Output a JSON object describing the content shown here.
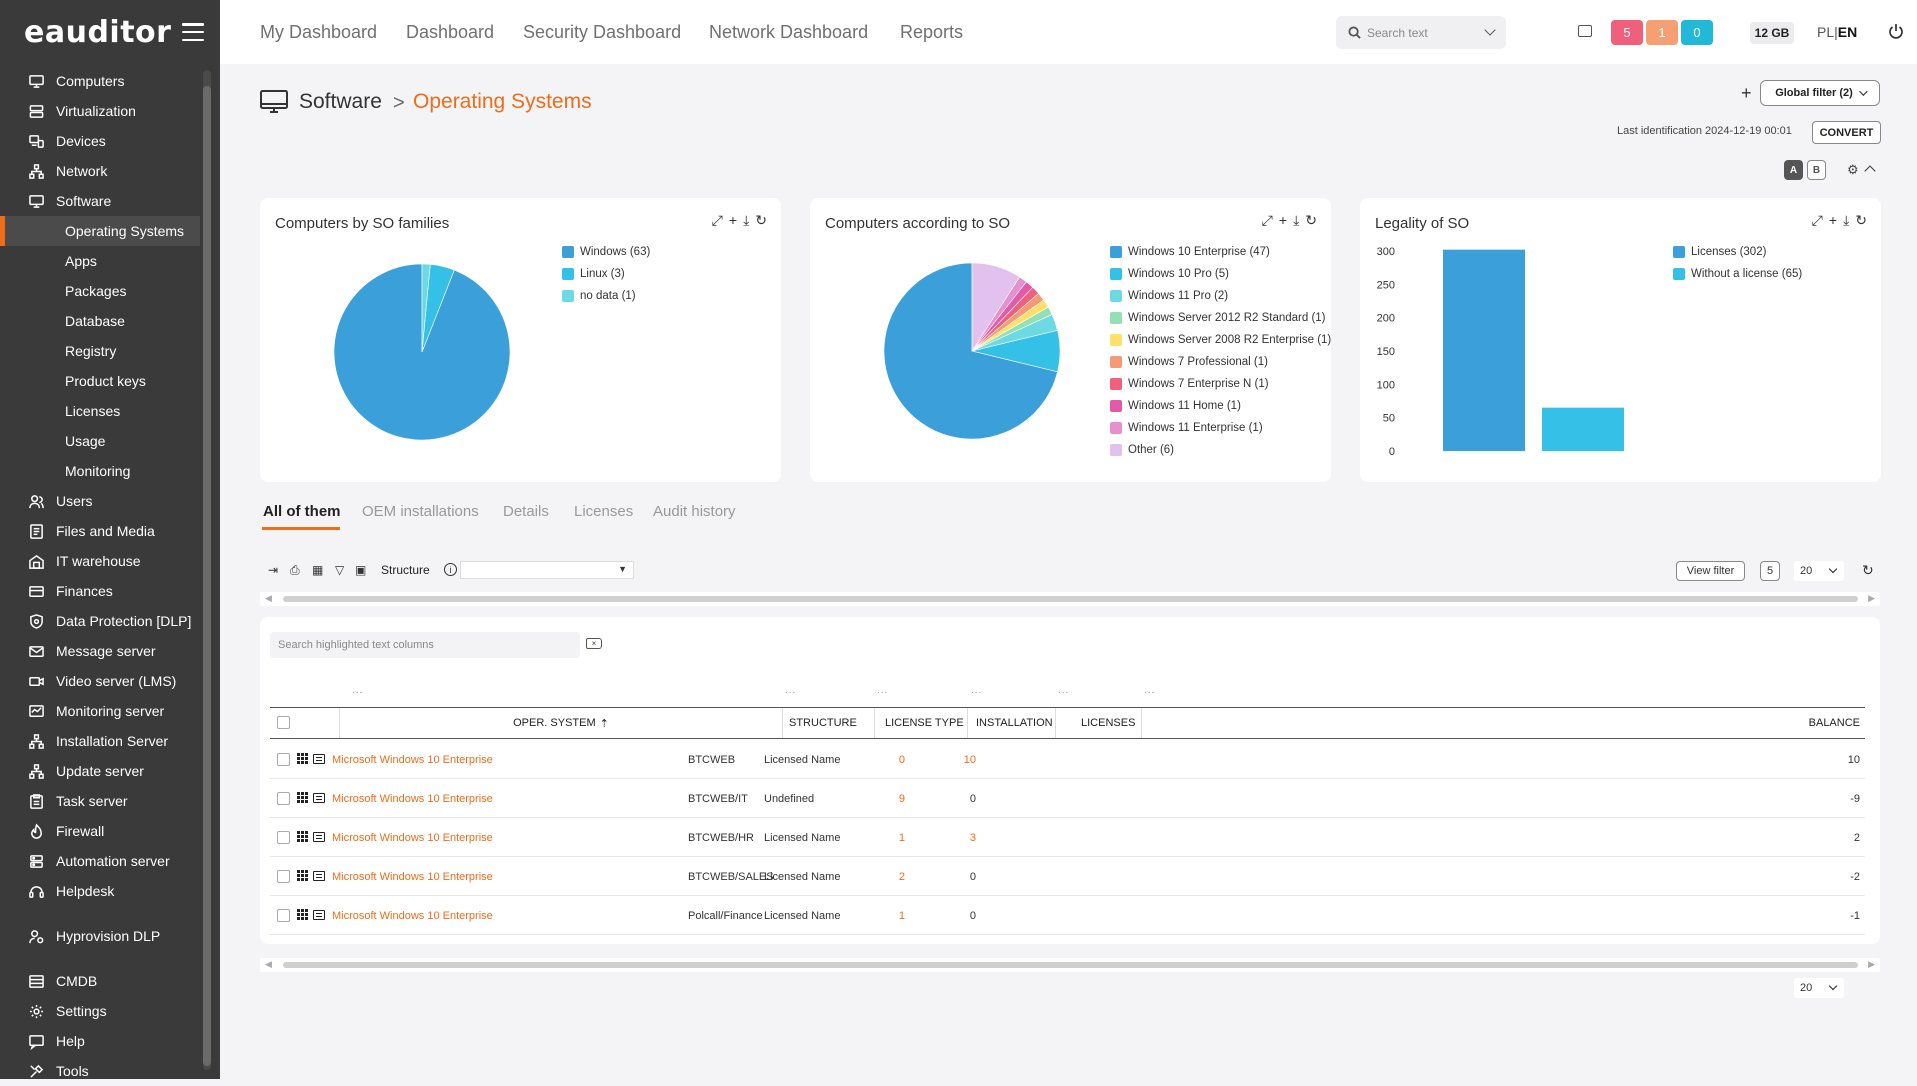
{
  "brand": "eauditor",
  "sidebar": {
    "items": [
      {
        "label": "Computers",
        "icon": "monitor-icon"
      },
      {
        "label": "Virtualization",
        "icon": "server-icon"
      },
      {
        "label": "Devices",
        "icon": "devices-icon"
      },
      {
        "label": "Network",
        "icon": "network-icon"
      },
      {
        "label": "Software",
        "icon": "software-icon"
      },
      {
        "label": "Operating Systems",
        "sub": true,
        "active": true
      },
      {
        "label": "Apps",
        "sub": true
      },
      {
        "label": "Packages",
        "sub": true
      },
      {
        "label": "Database",
        "sub": true
      },
      {
        "label": "Registry",
        "sub": true
      },
      {
        "label": "Product keys",
        "sub": true
      },
      {
        "label": "Licenses",
        "sub": true
      },
      {
        "label": "Usage",
        "sub": true
      },
      {
        "label": "Monitoring",
        "sub": true
      },
      {
        "label": "Users",
        "icon": "users-icon"
      },
      {
        "label": "Files and Media",
        "icon": "files-icon"
      },
      {
        "label": "IT warehouse",
        "icon": "warehouse-icon"
      },
      {
        "label": "Finances",
        "icon": "finances-icon"
      },
      {
        "label": "Data Protection [DLP]",
        "icon": "shield-icon"
      },
      {
        "label": "Message server",
        "icon": "mail-icon"
      },
      {
        "label": "Video server (LMS)",
        "icon": "video-icon"
      },
      {
        "label": "Monitoring server",
        "icon": "monitoring-icon"
      },
      {
        "label": "Installation Server",
        "icon": "installation-icon"
      },
      {
        "label": "Update server",
        "icon": "update-icon"
      },
      {
        "label": "Task server",
        "icon": "task-icon"
      },
      {
        "label": "Firewall",
        "icon": "firewall-icon"
      },
      {
        "label": "Automation server",
        "icon": "automation-icon"
      },
      {
        "label": "Helpdesk",
        "icon": "helpdesk-icon"
      },
      {
        "label": "Hyprovision DLP",
        "icon": "hyprovision-icon",
        "gap": true
      },
      {
        "label": "CMDB",
        "icon": "cmdb-icon",
        "gap": true
      },
      {
        "label": "Settings",
        "icon": "gear-icon"
      },
      {
        "label": "Help",
        "icon": "help-icon"
      },
      {
        "label": "Tools",
        "icon": "tools-icon"
      }
    ]
  },
  "topnav": [
    {
      "label": "My Dashboard"
    },
    {
      "label": "Dashboard"
    },
    {
      "label": "Security Dashboard"
    },
    {
      "label": "Network Dashboard"
    },
    {
      "label": "Reports"
    }
  ],
  "search": {
    "placeholder": "Search text"
  },
  "alerts": [
    {
      "value": "5",
      "color": "#f0607c"
    },
    {
      "value": "1",
      "color": "#f59f74"
    },
    {
      "value": "0",
      "color": "#22b8d8"
    }
  ],
  "memory": "12 GB",
  "lang": {
    "pl": "PL",
    "sep": "|",
    "en": "EN"
  },
  "breadcrumb": {
    "parent": "Software",
    "sep": ">",
    "current": "Operating Systems"
  },
  "actions": {
    "plus": "+",
    "global_filter": "Global filter (2)",
    "last_identification": "Last identification 2024-12-19 00:01",
    "convert": "CONVERT",
    "view_a": "A",
    "view_b": "B"
  },
  "chart_data": [
    {
      "type": "pie",
      "title": "Computers by SO families",
      "labels": [
        "Windows (63)",
        "Linux (3)",
        "no data (1)"
      ],
      "values": [
        63,
        3,
        1
      ],
      "colors": [
        "#3b9fd9",
        "#35c0e8",
        "#6cd9e3"
      ]
    },
    {
      "type": "pie",
      "title": "Computers according to SO",
      "labels": [
        "Windows 10 Enterprise (47)",
        "Windows 10 Pro (5)",
        "Windows 11 Pro (2)",
        "Windows Server 2012 R2 Standard (1)",
        "Windows Server 2008 R2 Enterprise (1)",
        "Windows 7 Professional (1)",
        "Windows 7 Enterprise N (1)",
        "Windows 11 Home (1)",
        "Windows 11 Enterprise (1)",
        "Other (6)"
      ],
      "values": [
        47,
        5,
        2,
        1,
        1,
        1,
        1,
        1,
        1,
        6
      ],
      "colors": [
        "#3b9fd9",
        "#35c0e8",
        "#6cd9e3",
        "#93e0b5",
        "#ffe06a",
        "#f59a74",
        "#f0607c",
        "#e25aa8",
        "#e690cf",
        "#e3c1ef"
      ]
    },
    {
      "type": "bar",
      "title": "Legality of SO",
      "categories": [
        "Licenses (302)",
        "Without a license (65)"
      ],
      "values": [
        302,
        65
      ],
      "colors": [
        "#3b9fd9",
        "#35c0e8"
      ],
      "ylim": [
        0,
        300
      ],
      "yticks": [
        "300",
        "250",
        "200",
        "150",
        "100",
        "50",
        "0"
      ]
    }
  ],
  "tabs": [
    {
      "label": "All of them",
      "active": true
    },
    {
      "label": "OEM installations"
    },
    {
      "label": "Details"
    },
    {
      "label": "Licenses"
    },
    {
      "label": "Audit history"
    }
  ],
  "toolbar": {
    "structure_label": "Structure",
    "view_filter": "View filter",
    "count": "5",
    "page_size": "20"
  },
  "table": {
    "search_placeholder": "Search highlighted text columns",
    "dots": "...",
    "columns": [
      "OPER. SYSTEM",
      "STRUCTURE",
      "LICENSE TYPE",
      "INSTALLATION",
      "LICENSES",
      "BALANCE"
    ],
    "rows": [
      {
        "os": "Microsoft Windows 10 Enterprise",
        "structure": "BTCWEB",
        "license_type": "Licensed Name",
        "installation": "0",
        "licenses": "10",
        "balance": "10",
        "lic_orange": true
      },
      {
        "os": "Microsoft Windows 10 Enterprise",
        "structure": "BTCWEB/IT",
        "license_type": "Undefined",
        "installation": "9",
        "licenses": "0",
        "balance": "-9",
        "lic_orange": false
      },
      {
        "os": "Microsoft Windows 10 Enterprise",
        "structure": "BTCWEB/HR",
        "license_type": "Licensed Name",
        "installation": "1",
        "licenses": "3",
        "balance": "2",
        "lic_orange": true
      },
      {
        "os": "Microsoft Windows 10 Enterprise",
        "structure": "BTCWEB/SALES",
        "license_type": "Licensed Name",
        "installation": "2",
        "licenses": "0",
        "balance": "-2",
        "lic_orange": false
      },
      {
        "os": "Microsoft Windows 10 Enterprise",
        "structure": "Polcall/Finance",
        "license_type": "Licensed Name",
        "installation": "1",
        "licenses": "0",
        "balance": "-1",
        "lic_orange": false
      }
    ]
  }
}
